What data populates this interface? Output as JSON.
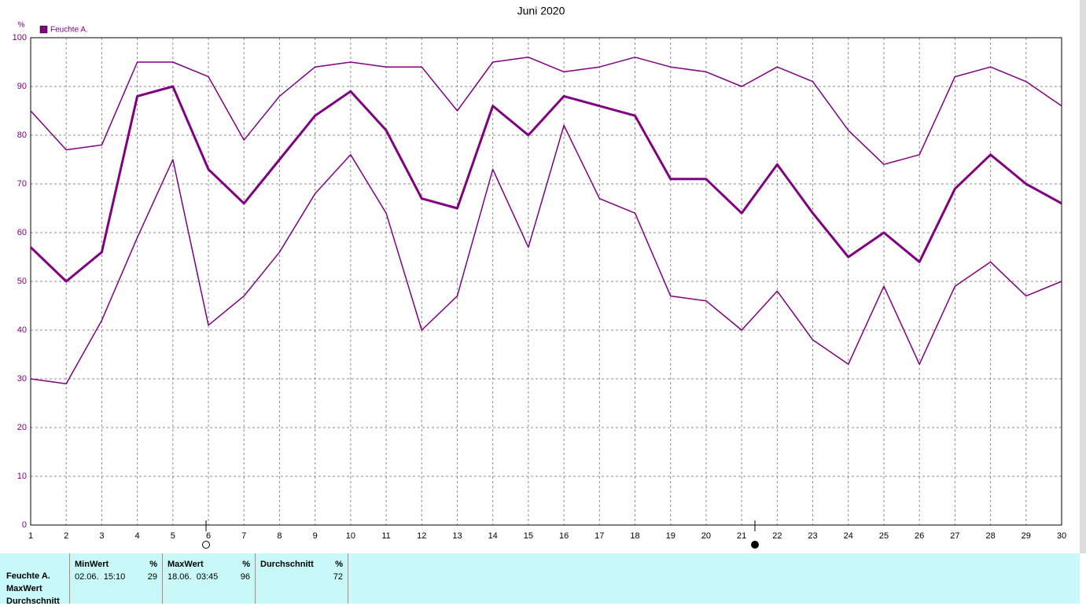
{
  "chart_data": {
    "type": "line",
    "title": "Juni 2020",
    "y_label": "%",
    "x": [
      1,
      2,
      3,
      4,
      5,
      6,
      7,
      8,
      9,
      10,
      11,
      12,
      13,
      14,
      15,
      16,
      17,
      18,
      19,
      20,
      21,
      22,
      23,
      24,
      25,
      26,
      27,
      28,
      29,
      30
    ],
    "xlim": [
      1,
      30
    ],
    "xticks": [
      1,
      2,
      3,
      4,
      5,
      6,
      7,
      8,
      9,
      10,
      11,
      12,
      13,
      14,
      15,
      16,
      17,
      18,
      19,
      20,
      21,
      22,
      23,
      24,
      25,
      26,
      27,
      28,
      29,
      30
    ],
    "ylim": [
      0,
      100
    ],
    "yticks": [
      0,
      10,
      20,
      30,
      40,
      50,
      60,
      70,
      80,
      90,
      100
    ],
    "grid": true,
    "legend": "upper left",
    "series": [
      {
        "color": "#800080",
        "width": 1.5,
        "values": [
          85,
          77,
          78,
          95,
          95,
          92,
          79,
          88,
          94,
          95,
          94,
          94,
          85,
          95,
          96,
          93,
          94,
          96,
          94,
          93,
          90,
          94,
          91,
          81,
          74,
          76,
          92,
          94,
          91,
          86
        ]
      },
      {
        "name": "Feuchte A.",
        "color": "#800080",
        "width": 3,
        "values": [
          57,
          50,
          56,
          88,
          90,
          73,
          66,
          75,
          84,
          89,
          81,
          67,
          65,
          86,
          80,
          88,
          86,
          84,
          71,
          71,
          64,
          74,
          64,
          55,
          60,
          54,
          69,
          76,
          70,
          66
        ]
      },
      {
        "color": "#800080",
        "width": 1.5,
        "values": [
          30,
          29,
          42,
          59,
          75,
          41,
          47,
          56,
          68,
          76,
          64,
          40,
          47,
          73,
          57,
          82,
          67,
          64,
          47,
          46,
          40,
          48,
          38,
          33,
          49,
          33,
          49,
          54,
          47,
          50
        ]
      }
    ]
  },
  "table": {
    "row_labels": [
      "Feuchte A.",
      "MaxWert",
      "Durchschnitt"
    ],
    "columns": [
      {
        "title": "MinWert",
        "unit": "%",
        "time": "02.06.  15:10",
        "value": 29
      },
      {
        "title": "MaxWert",
        "unit": "%",
        "time": "18.06.  03:45",
        "value": 96
      },
      {
        "title": "Durchschnitt",
        "unit": "%",
        "value": 72
      }
    ]
  }
}
